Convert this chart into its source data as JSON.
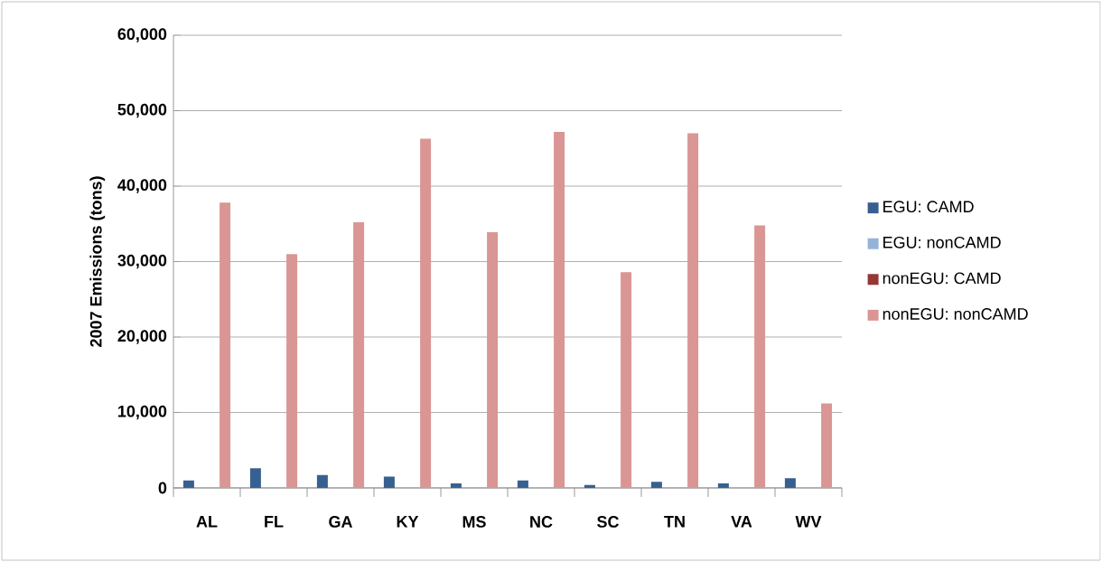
{
  "chart_data": {
    "type": "bar",
    "ylabel": "2007 Emissions (tons)",
    "categories": [
      "AL",
      "FL",
      "GA",
      "KY",
      "MS",
      "NC",
      "SC",
      "TN",
      "VA",
      "WV"
    ],
    "series": [
      {
        "name": "EGU: CAMD",
        "color": "#376092",
        "values": [
          1000,
          2600,
          1700,
          1500,
          600,
          1000,
          400,
          800,
          600,
          1300
        ]
      },
      {
        "name": "EGU: nonCAMD",
        "color": "#95b3d7",
        "values": [
          0,
          0,
          0,
          0,
          0,
          0,
          0,
          0,
          0,
          0
        ]
      },
      {
        "name": "nonEGU: CAMD",
        "color": "#953735",
        "values": [
          0,
          0,
          0,
          0,
          0,
          0,
          0,
          0,
          0,
          0
        ]
      },
      {
        "name": "nonEGU: nonCAMD",
        "color": "#d99694",
        "values": [
          37800,
          31000,
          35200,
          46300,
          33900,
          47200,
          28600,
          47000,
          34800,
          11200
        ]
      }
    ],
    "ylim": [
      0,
      60000
    ],
    "yticks": [
      {
        "value": 0,
        "label": "0"
      },
      {
        "value": 10000,
        "label": "10,000"
      },
      {
        "value": 20000,
        "label": "20,000"
      },
      {
        "value": 30000,
        "label": "30,000"
      },
      {
        "value": 40000,
        "label": "40,000"
      },
      {
        "value": 50000,
        "label": "50,000"
      },
      {
        "value": 60000,
        "label": "60,000"
      }
    ],
    "grid": "y",
    "legend": "right"
  }
}
